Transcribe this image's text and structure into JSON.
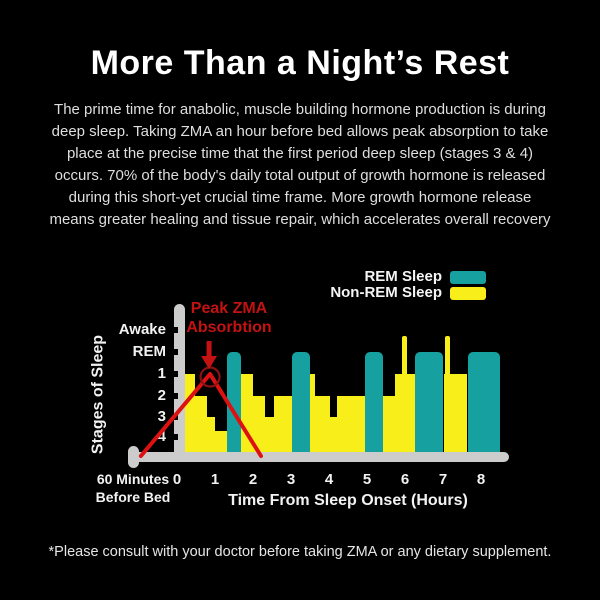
{
  "title": "More Than a Night’s Rest",
  "intro": {
    "text": "The prime time for anabolic, muscle building hormone production is during\ndeep sleep. Taking ZMA an hour before bed allows peak absorption to take\nplace at the precise time that the first period deep sleep (stages 3 & 4)\noccurs. 70% of the body's daily total output of growth hormone is released\nduring this short-yet crucial time frame. More growth hormone release\nmeans greater healing and tissue repair, which accelerates overall recovery"
  },
  "legend": {
    "items": [
      {
        "label": "REM Sleep",
        "color": "#17a0a0"
      },
      {
        "label": "Non-REM Sleep",
        "color": "#f8ee19"
      }
    ]
  },
  "chart_data": {
    "type": "bar",
    "subtype": "hypnogram",
    "xlabel": "Time From Sleep Onset (Hours)",
    "ylabel": "Stages of Sleep",
    "x_pre_label": "60 Minutes\nBefore Bed",
    "x_ticks": [
      "0",
      "1",
      "2",
      "3",
      "4",
      "5",
      "6",
      "7",
      "8"
    ],
    "y_ticks": [
      "Awake",
      "REM",
      "1",
      "2",
      "3",
      "4"
    ],
    "grid": false,
    "legend_position": "top-right",
    "colors": {
      "rem": "#17a0a0",
      "non_rem": "#f8ee19",
      "axis": "#cccccc",
      "axis_text": "#f2f2f2",
      "annotation_text": "#c41212",
      "annotation_line": "#dd1111",
      "annotation_circle": "#8e1010"
    },
    "segments": [
      {
        "start_h": 0.16,
        "end_h": 0.47,
        "stage": "1",
        "type": "non-rem"
      },
      {
        "start_h": 0.47,
        "end_h": 0.79,
        "stage": "2",
        "type": "non-rem"
      },
      {
        "start_h": 0.79,
        "end_h": 1.0,
        "stage": "3",
        "type": "non-rem"
      },
      {
        "start_h": 1.0,
        "end_h": 1.32,
        "stage": "4",
        "type": "non-rem"
      },
      {
        "start_h": 1.32,
        "end_h": 1.68,
        "stage": "REM",
        "type": "rem"
      },
      {
        "start_h": 1.68,
        "end_h": 2.0,
        "stage": "1",
        "type": "non-rem"
      },
      {
        "start_h": 2.0,
        "end_h": 2.32,
        "stage": "2",
        "type": "non-rem"
      },
      {
        "start_h": 2.32,
        "end_h": 2.55,
        "stage": "3",
        "type": "non-rem"
      },
      {
        "start_h": 2.55,
        "end_h": 3.03,
        "stage": "2",
        "type": "non-rem"
      },
      {
        "start_h": 3.03,
        "end_h": 3.5,
        "stage": "REM",
        "type": "rem"
      },
      {
        "start_h": 3.5,
        "end_h": 3.63,
        "stage": "1",
        "type": "non-rem"
      },
      {
        "start_h": 3.63,
        "end_h": 4.03,
        "stage": "2",
        "type": "non-rem"
      },
      {
        "start_h": 4.03,
        "end_h": 4.21,
        "stage": "3",
        "type": "non-rem"
      },
      {
        "start_h": 4.21,
        "end_h": 4.95,
        "stage": "2",
        "type": "non-rem"
      },
      {
        "start_h": 4.95,
        "end_h": 5.42,
        "stage": "REM",
        "type": "rem"
      },
      {
        "start_h": 5.42,
        "end_h": 5.74,
        "stage": "2",
        "type": "non-rem"
      },
      {
        "start_h": 5.74,
        "end_h": 6.26,
        "stage": "1",
        "type": "non-rem"
      },
      {
        "start_h": 5.92,
        "end_h": 6.05,
        "stage": "Awake",
        "type": "wake-spike"
      },
      {
        "start_h": 6.26,
        "end_h": 7.0,
        "stage": "REM",
        "type": "rem"
      },
      {
        "start_h": 7.03,
        "end_h": 7.63,
        "stage": "1",
        "type": "non-rem"
      },
      {
        "start_h": 7.05,
        "end_h": 7.18,
        "stage": "Awake",
        "type": "wake-spike"
      },
      {
        "start_h": 7.65,
        "end_h": 8.5,
        "stage": "REM",
        "type": "rem"
      }
    ],
    "annotation": {
      "title": "Peak ZMA\nAbsorbtion",
      "peak_hour": 0.87,
      "peak_stage": "1",
      "line_start_h": -0.95,
      "line_end_h": 2.21
    }
  },
  "footnote": "*Please consult with your doctor before taking ZMA or any dietary supplement."
}
